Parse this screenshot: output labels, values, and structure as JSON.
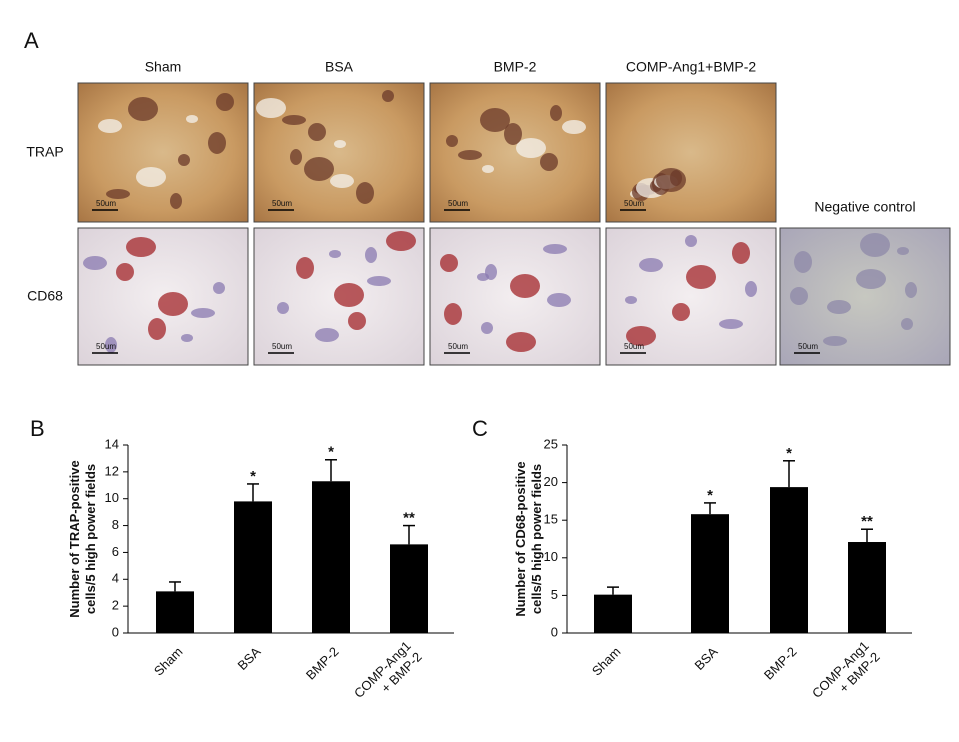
{
  "panel_a": {
    "letter": "A",
    "columns": [
      "Sham",
      "BSA",
      "BMP-2",
      "COMP-Ang1+BMP-2"
    ],
    "negative_control": "Negative control",
    "rows": [
      "TRAP",
      "CD68"
    ],
    "scale_labels": [
      "50um",
      "50um",
      "50um",
      "50um",
      "50um",
      "50um",
      "50um",
      "50um",
      "50um"
    ]
  },
  "chart_data": [
    {
      "type": "bar",
      "letter": "B",
      "ylabel": "Number of TRAP-positive\ncells/5 high power fields",
      "categories": [
        "Sham",
        "BSA",
        "BMP-2",
        "COMP-Ang1\n+ BMP-2"
      ],
      "values": [
        3.1,
        9.8,
        11.3,
        6.6
      ],
      "errors": [
        0.7,
        1.3,
        1.6,
        1.4
      ],
      "significance": [
        null,
        "*",
        "*",
        "**"
      ],
      "color": "#000000",
      "ylim": [
        0,
        14
      ],
      "yticks": [
        0,
        2,
        4,
        6,
        8,
        10,
        12,
        14
      ]
    },
    {
      "type": "bar",
      "letter": "C",
      "ylabel": "Number of CD68-positive\ncells/5 high power fields",
      "categories": [
        "Sham",
        "BSA",
        "BMP-2",
        "COMP-Ang1\n+ BMP-2"
      ],
      "values": [
        5.1,
        15.8,
        19.4,
        12.1
      ],
      "errors": [
        1.0,
        1.5,
        3.5,
        1.7
      ],
      "significance": [
        null,
        "*",
        "*",
        "**"
      ],
      "color": "#000000",
      "ylim": [
        0,
        25
      ],
      "yticks": [
        0,
        5,
        10,
        15,
        20,
        25
      ]
    }
  ]
}
